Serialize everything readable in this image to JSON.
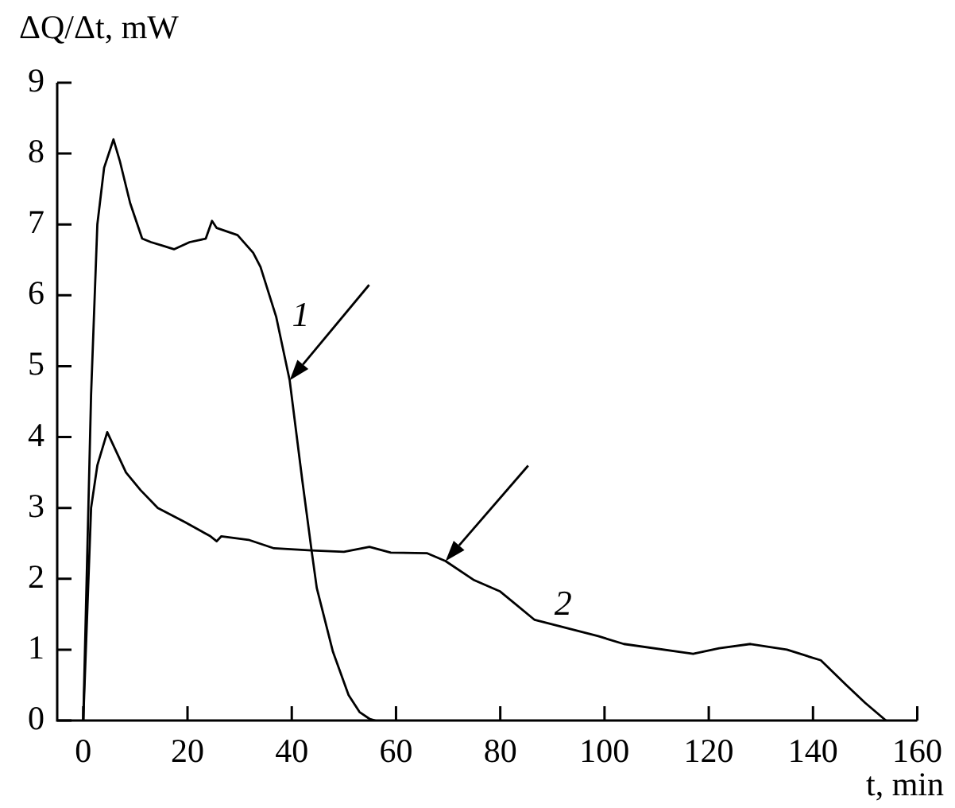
{
  "chart_data": {
    "type": "line",
    "xlabel": "t, min",
    "ylabel": "ΔQ/Δt, mW",
    "xlim": [
      -5,
      160
    ],
    "xticks": [
      0,
      20,
      40,
      60,
      80,
      100,
      120,
      140,
      160
    ],
    "ylim": [
      0,
      9
    ],
    "yticks": [
      0,
      1,
      2,
      3,
      4,
      5,
      6,
      7,
      8,
      9
    ],
    "grid": false,
    "marker": "none",
    "line_style": "solid",
    "series": [
      {
        "name": "1",
        "color": "#000000",
        "x": [
          0,
          1.5,
          2.7,
          4,
          5.8,
          7,
          9,
          11.3,
          13,
          15.2,
          17.4,
          20.4,
          23.5,
          24.7,
          25.6,
          29.6,
          32.6,
          34,
          37,
          39.6,
          42,
          43.8,
          44.8,
          47.9,
          50.9,
          53,
          55,
          56
        ],
        "values": [
          0,
          4.6,
          7,
          7.8,
          8.2,
          7.9,
          7.3,
          6.8,
          6.75,
          6.7,
          6.65,
          6.75,
          6.8,
          7.05,
          6.95,
          6.85,
          6.6,
          6.4,
          5.7,
          4.8,
          3.4,
          2.4,
          1.87,
          0.97,
          0.36,
          0.12,
          0.02,
          0
        ]
      },
      {
        "name": "2",
        "color": "#000000",
        "x": [
          0,
          1.5,
          2.7,
          4.6,
          8.2,
          11,
          14.3,
          19.5,
          24.4,
          25.6,
          26.5,
          31.7,
          36.6,
          43.8,
          50,
          54.9,
          59,
          66,
          69.5,
          75,
          80,
          86.6,
          98.8,
          103.7,
          117,
          122,
          128,
          135,
          139.3,
          141.5,
          146.4,
          150,
          154
        ],
        "values": [
          0,
          3,
          3.6,
          4.07,
          3.5,
          3.25,
          3,
          2.8,
          2.6,
          2.53,
          2.6,
          2.55,
          2.43,
          2.4,
          2.38,
          2.45,
          2.37,
          2.36,
          2.25,
          1.98,
          1.82,
          1.42,
          1.19,
          1.08,
          0.94,
          1.02,
          1.08,
          1.0,
          0.9,
          0.85,
          0.5,
          0.25,
          0
        ]
      }
    ]
  }
}
